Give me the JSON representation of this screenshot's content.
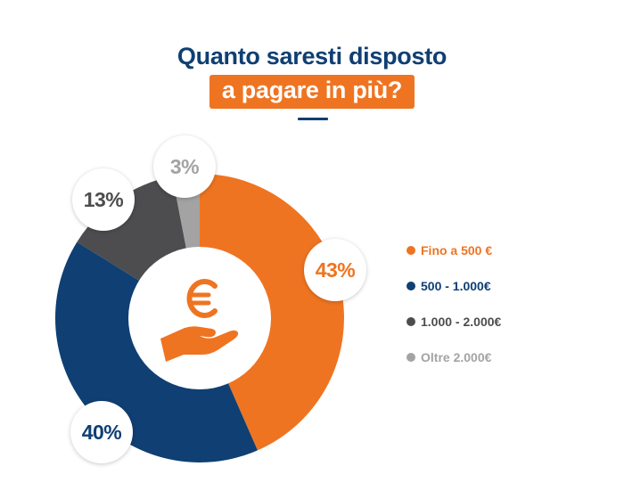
{
  "title": {
    "line1": "Quanto saresti disposto",
    "line2": "a pagare in più?"
  },
  "center_icon": "hand-holding-euro-icon",
  "colors": {
    "title_navy": "#0f3f73",
    "accent_orange": "#ef7421",
    "navy": "#0f3f73",
    "dark_grey": "#4d4d4f",
    "light_grey": "#a3a3a3"
  },
  "chart_data": {
    "type": "pie",
    "subtype": "donut",
    "title": "Quanto saresti disposto a pagare in più?",
    "categories": [
      "Fino a 500 €",
      "500 - 1.000€",
      "1.000 - 2.000€",
      "Oltre 2.000€"
    ],
    "values": [
      43,
      40,
      13,
      3
    ],
    "unit": "%",
    "colors": [
      "#ef7421",
      "#0f3f73",
      "#4d4d4f",
      "#a3a3a3"
    ],
    "data_labels": [
      "43%",
      "40%",
      "13%",
      "3%"
    ],
    "legend_position": "right",
    "start_angle": "12 o'clock",
    "direction": "clockwise"
  },
  "badges": [
    {
      "label": "43%",
      "color": "#ef7421"
    },
    {
      "label": "40%",
      "color": "#0f3f73"
    },
    {
      "label": "13%",
      "color": "#4d4d4f"
    },
    {
      "label": "3%",
      "color": "#a3a3a3"
    }
  ],
  "legend": [
    {
      "label": "Fino a 500 €",
      "color": "#ef7421"
    },
    {
      "label": "500 - 1.000€",
      "color": "#0f3f73"
    },
    {
      "label": "1.000 - 2.000€",
      "color": "#4d4d4f"
    },
    {
      "label": "Oltre 2.000€",
      "color": "#a3a3a3"
    }
  ]
}
